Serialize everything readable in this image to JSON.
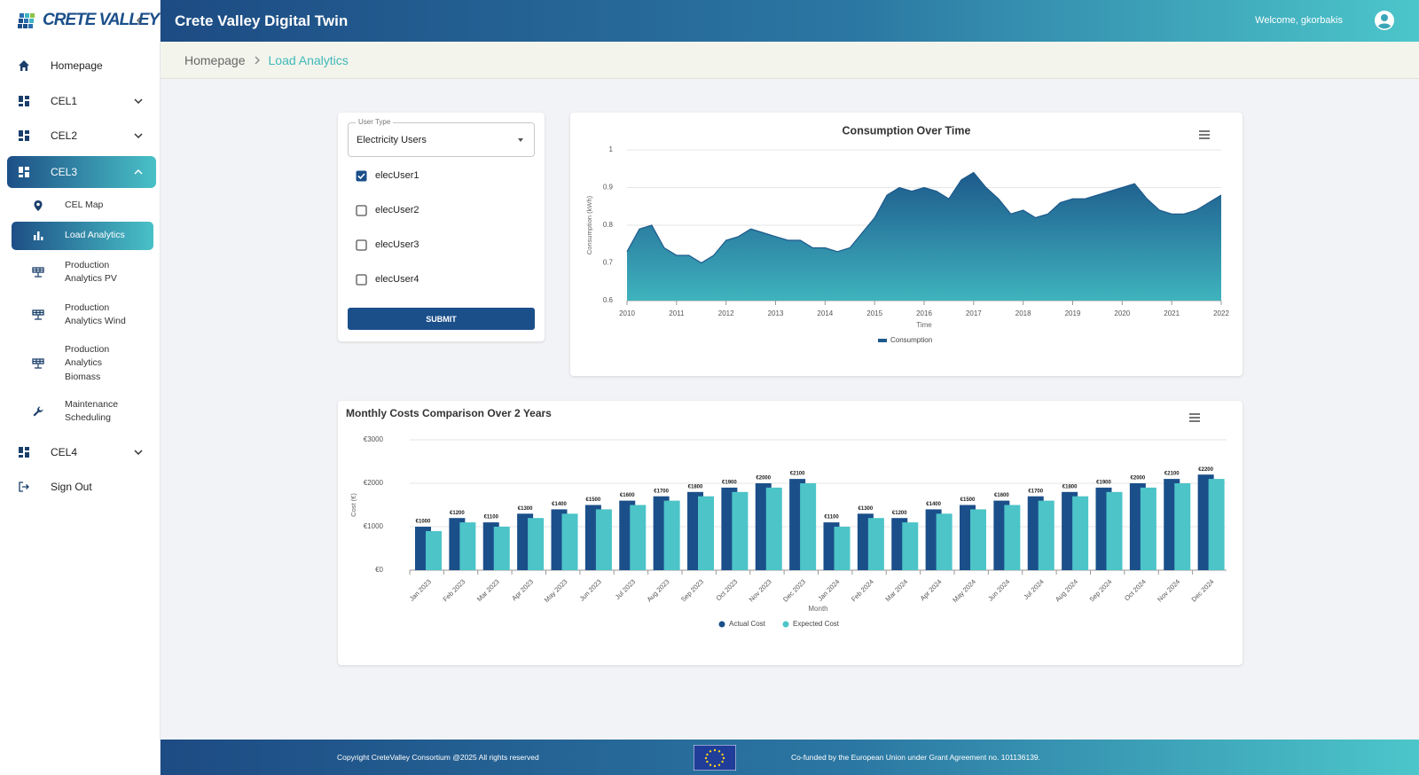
{
  "logo": "CRETE VALLEY",
  "header": {
    "title": "Crete Valley Digital Twin",
    "welcome": "Welcome, gkorbakis"
  },
  "breadcrumb": [
    "Homepage",
    "Load Analytics"
  ],
  "menu": {
    "homepage": "Homepage",
    "cel1": "CEL1",
    "cel2": "CEL2",
    "cel3": "CEL3",
    "cel3_items": [
      "CEL Map",
      "Load Analytics",
      "Production Analytics PV",
      "Production Analytics Wind",
      "Production Analytics Biomass",
      "Maintenance Scheduling"
    ],
    "cel4": "CEL4",
    "signout": "Sign Out"
  },
  "form": {
    "legend": "User Type",
    "select": "Electricity Users",
    "options": [
      {
        "label": "elecUser1",
        "checked": true
      },
      {
        "label": "elecUser2",
        "checked": false
      },
      {
        "label": "elecUser3",
        "checked": false
      },
      {
        "label": "elecUser4",
        "checked": false
      }
    ],
    "submit": "SUBMIT"
  },
  "footer": {
    "copyright": "Copyright CreteValley Consortium @2025 All rights reserved",
    "funding": "Co-funded by the European Union under Grant Agreement no. 101136139."
  },
  "chart_data": [
    {
      "type": "area",
      "title": "Consumption Over Time",
      "x_label": "Time",
      "y_label": "Consumption (kWh)",
      "x": [
        2010,
        2010.25,
        2010.5,
        2010.75,
        2011,
        2011.25,
        2011.5,
        2011.75,
        2012,
        2012.25,
        2012.5,
        2012.75,
        2013,
        2013.25,
        2013.5,
        2013.75,
        2014,
        2014.25,
        2014.5,
        2014.75,
        2015,
        2015.25,
        2015.5,
        2015.75,
        2016,
        2016.25,
        2016.5,
        2016.75,
        2017,
        2017.25,
        2017.5,
        2017.75,
        2018,
        2018.25,
        2018.5,
        2018.75,
        2019,
        2019.25,
        2019.5,
        2019.75,
        2020,
        2020.25,
        2020.5,
        2020.75,
        2021,
        2021.25,
        2021.5,
        2021.75,
        2022
      ],
      "series": [
        {
          "name": "Consumption",
          "color": "#1d5a8c",
          "values": [
            0.73,
            0.79,
            0.8,
            0.74,
            0.72,
            0.72,
            0.7,
            0.72,
            0.76,
            0.77,
            0.79,
            0.78,
            0.77,
            0.76,
            0.76,
            0.74,
            0.74,
            0.73,
            0.74,
            0.78,
            0.82,
            0.88,
            0.9,
            0.89,
            0.9,
            0.89,
            0.87,
            0.92,
            0.94,
            0.9,
            0.87,
            0.83,
            0.84,
            0.82,
            0.83,
            0.86,
            0.87,
            0.87,
            0.88,
            0.89,
            0.9,
            0.91,
            0.87,
            0.84,
            0.83,
            0.83,
            0.84,
            0.86,
            0.88
          ]
        }
      ],
      "xlim": [
        2010,
        2022
      ],
      "xticks": [
        2010,
        2011,
        2012,
        2013,
        2014,
        2015,
        2016,
        2017,
        2018,
        2019,
        2020,
        2021,
        2022
      ],
      "ylim": [
        0.6,
        1
      ],
      "yticks": [
        0.6,
        0.7,
        0.8,
        0.9,
        1
      ],
      "grid": true
    },
    {
      "type": "bar",
      "title": "Monthly Costs Comparison Over 2 Years",
      "x_label": "Month",
      "y_label": "Cost (€)",
      "categories": [
        "Jan 2023",
        "Feb 2023",
        "Mar 2023",
        "Apr 2023",
        "May 2023",
        "Jun 2023",
        "Jul 2023",
        "Aug 2023",
        "Sep 2023",
        "Oct 2023",
        "Nov 2023",
        "Dec 2023",
        "Jan 2024",
        "Feb 2024",
        "Mar 2024",
        "Apr 2024",
        "May 2024",
        "Jun 2024",
        "Jul 2024",
        "Aug 2024",
        "Sep 2024",
        "Oct 2024",
        "Nov 2024",
        "Dec 2024"
      ],
      "series": [
        {
          "name": "Actual Cost",
          "color": "#1b4f8a",
          "values": [
            1000,
            1200,
            1100,
            1300,
            1400,
            1500,
            1600,
            1700,
            1800,
            1900,
            2000,
            2100,
            1100,
            1300,
            1200,
            1400,
            1500,
            1600,
            1700,
            1800,
            1900,
            2000,
            2100,
            2200
          ],
          "value_labels": [
            "€1000",
            "€1200",
            "€1100",
            "€1300",
            "€1400",
            "€1500",
            "€1600",
            "€1700",
            "€1800",
            "€1900",
            "€2000",
            "€2100",
            "€1100",
            "€1300",
            "€1200",
            "€1400",
            "€1500",
            "€1600",
            "€1700",
            "€1800",
            "€1900",
            "€2000",
            "€2100",
            "€2200"
          ]
        },
        {
          "name": "Expected Cost",
          "color": "#4cc4c8",
          "values": [
            900,
            1100,
            1000,
            1200,
            1300,
            1400,
            1500,
            1600,
            1700,
            1800,
            1900,
            2000,
            1000,
            1200,
            1100,
            1300,
            1400,
            1500,
            1600,
            1700,
            1800,
            1900,
            2000,
            2100
          ]
        }
      ],
      "ylim": [
        0,
        3000
      ],
      "yticks": [
        {
          "value": 0,
          "label": "€0"
        },
        {
          "value": 1000,
          "label": "€1000"
        },
        {
          "value": 2000,
          "label": "€2000"
        },
        {
          "value": 3000,
          "label": "€3000"
        }
      ],
      "grid": true
    }
  ]
}
